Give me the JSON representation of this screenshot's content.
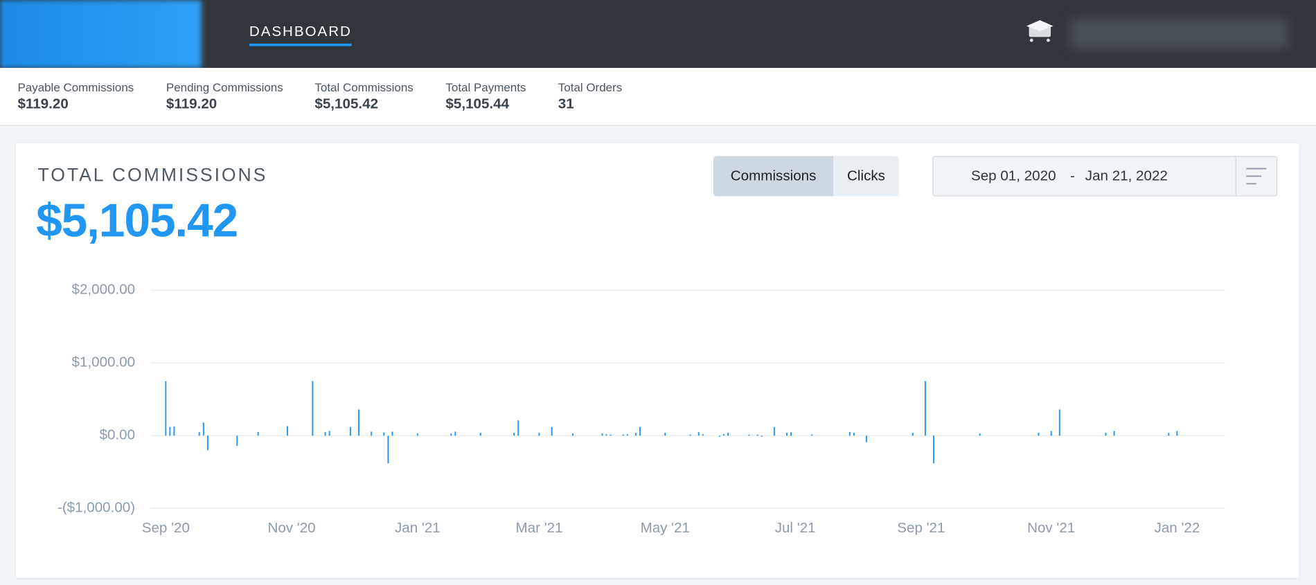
{
  "header": {
    "nav": "DASHBOARD"
  },
  "stats": [
    {
      "label": "Payable Commissions",
      "value": "$119.20"
    },
    {
      "label": "Pending Commissions",
      "value": "$119.20"
    },
    {
      "label": "Total Commissions",
      "value": "$5,105.42"
    },
    {
      "label": "Total Payments",
      "value": "$5,105.44"
    },
    {
      "label": "Total Orders",
      "value": "31"
    }
  ],
  "card": {
    "title": "TOTAL COMMISSIONS",
    "total": "$5,105.42",
    "toggle": [
      "Commissions",
      "Clicks"
    ],
    "date_from": "Sep 01, 2020",
    "date_separator": "-",
    "date_to": "Jan 21, 2022"
  },
  "chart_data": {
    "type": "bar",
    "color": "#2196f3",
    "grid": true,
    "ylim": [
      -1000,
      2000
    ],
    "yticks": [
      {
        "value": -1000,
        "label": "-($1,000.00)"
      },
      {
        "value": 0,
        "label": "$0.00"
      },
      {
        "value": 1000,
        "label": "$1,000.00"
      },
      {
        "value": 2000,
        "label": "$2,000.00"
      }
    ],
    "categories": [
      null,
      null,
      null,
      "Sep '20",
      null,
      null,
      null,
      null,
      null,
      null,
      null,
      null,
      null,
      null,
      null,
      null,
      null,
      null,
      null,
      null,
      null,
      null,
      null,
      null,
      null,
      null,
      null,
      null,
      null,
      null,
      null,
      null,
      null,
      "Nov '20",
      null,
      null,
      null,
      null,
      null,
      null,
      null,
      null,
      null,
      null,
      null,
      null,
      null,
      null,
      null,
      null,
      null,
      null,
      null,
      null,
      null,
      null,
      null,
      null,
      null,
      null,
      null,
      null,
      null,
      "Jan '21",
      null,
      null,
      null,
      null,
      null,
      null,
      null,
      null,
      null,
      null,
      null,
      null,
      null,
      null,
      null,
      null,
      null,
      null,
      null,
      null,
      null,
      null,
      null,
      null,
      null,
      null,
      null,
      null,
      "Mar '21",
      null,
      null,
      null,
      null,
      null,
      null,
      null,
      null,
      null,
      null,
      null,
      null,
      null,
      null,
      null,
      null,
      null,
      null,
      null,
      null,
      null,
      null,
      null,
      null,
      null,
      null,
      null,
      null,
      null,
      "May '21",
      null,
      null,
      null,
      null,
      null,
      null,
      null,
      null,
      null,
      null,
      null,
      null,
      null,
      null,
      null,
      null,
      null,
      null,
      null,
      null,
      null,
      null,
      null,
      null,
      null,
      null,
      null,
      null,
      null,
      null,
      "Jul '21",
      null,
      null,
      null,
      null,
      null,
      null,
      null,
      null,
      null,
      null,
      null,
      null,
      null,
      null,
      null,
      null,
      null,
      null,
      null,
      null,
      null,
      null,
      null,
      null,
      null,
      null,
      null,
      null,
      null,
      "Sep '21",
      null,
      null,
      null,
      null,
      null,
      null,
      null,
      null,
      null,
      null,
      null,
      null,
      null,
      null,
      null,
      null,
      null,
      null,
      null,
      null,
      null,
      null,
      null,
      null,
      null,
      null,
      null,
      null,
      null,
      null,
      "Nov '21",
      null,
      null,
      null,
      null,
      null,
      null,
      null,
      null,
      null,
      null,
      null,
      null,
      null,
      null,
      null,
      null,
      null,
      null,
      null,
      null,
      null,
      null,
      null,
      null,
      null,
      null,
      null,
      null,
      null,
      "Jan '22",
      null,
      null,
      null,
      null,
      null,
      null,
      null,
      null,
      null,
      null,
      null
    ],
    "values": [
      0,
      0,
      0,
      750,
      120,
      126,
      0,
      0,
      0,
      0,
      0,
      50,
      180,
      -200,
      0,
      0,
      0,
      0,
      0,
      0,
      -140,
      0,
      0,
      0,
      0,
      50,
      0,
      0,
      0,
      0,
      0,
      0,
      130,
      0,
      0,
      0,
      0,
      0,
      750,
      0,
      0,
      50,
      65,
      0,
      0,
      0,
      0,
      120,
      0,
      360,
      0,
      0,
      55,
      0,
      0,
      45,
      -380,
      55,
      0,
      0,
      0,
      0,
      0,
      30,
      0,
      0,
      0,
      0,
      0,
      0,
      0,
      30,
      55,
      0,
      0,
      0,
      0,
      0,
      40,
      0,
      0,
      0,
      0,
      0,
      0,
      0,
      40,
      210,
      0,
      0,
      0,
      0,
      40,
      0,
      0,
      120,
      0,
      0,
      0,
      0,
      30,
      0,
      0,
      0,
      0,
      0,
      0,
      30,
      20,
      15,
      0,
      0,
      15,
      20,
      0,
      40,
      120,
      0,
      0,
      0,
      0,
      0,
      40,
      0,
      0,
      0,
      0,
      0,
      15,
      0,
      50,
      20,
      0,
      0,
      0,
      -15,
      20,
      40,
      0,
      0,
      0,
      0,
      15,
      0,
      15,
      -15,
      0,
      0,
      120,
      0,
      0,
      40,
      45,
      0,
      0,
      0,
      0,
      15,
      0,
      0,
      0,
      0,
      0,
      0,
      0,
      0,
      50,
      40,
      0,
      0,
      -90,
      0,
      0,
      0,
      0,
      0,
      0,
      0,
      0,
      0,
      0,
      40,
      0,
      0,
      750,
      0,
      -380,
      0,
      0,
      0,
      0,
      0,
      0,
      0,
      0,
      0,
      0,
      30,
      0,
      0,
      0,
      0,
      0,
      0,
      0,
      0,
      0,
      0,
      0,
      0,
      0,
      40,
      0,
      0,
      65,
      0,
      360,
      0,
      0,
      0,
      0,
      0,
      0,
      0,
      0,
      0,
      0,
      40,
      0,
      65,
      0,
      0,
      0,
      0,
      0,
      0,
      0,
      0,
      0,
      0,
      0,
      0,
      40,
      0,
      65,
      0,
      0,
      0,
      0,
      0,
      0,
      0,
      0,
      0,
      0,
      0
    ]
  }
}
